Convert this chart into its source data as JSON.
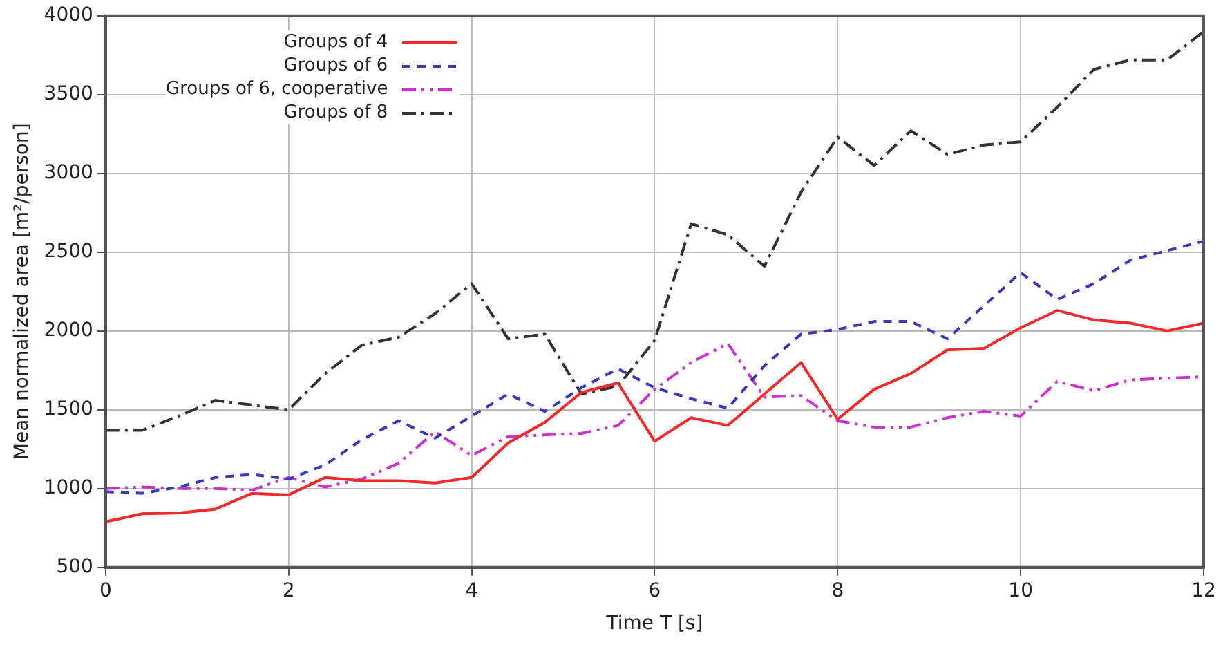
{
  "chart_data": {
    "type": "line",
    "xlabel": "Time T [s]",
    "ylabel": "Mean normalized area [m²/person]",
    "x": [
      0,
      0.4,
      0.8,
      1.2,
      1.6,
      2.0,
      2.4,
      2.8,
      3.2,
      3.6,
      4.0,
      4.4,
      4.8,
      5.2,
      5.6,
      6.0,
      6.4,
      6.8,
      7.2,
      7.6,
      8.0,
      8.4,
      8.8,
      9.2,
      9.6,
      10.0,
      10.4,
      10.8,
      11.2,
      11.6,
      12.0
    ],
    "series": [
      {
        "name": "Groups of 4",
        "color": "#ee2a2a",
        "line_style": "solid",
        "values": [
          790,
          840,
          845,
          870,
          970,
          960,
          1070,
          1050,
          1050,
          1035,
          1070,
          1290,
          1420,
          1610,
          1670,
          1300,
          1450,
          1400,
          1600,
          1800,
          1440,
          1630,
          1730,
          1880,
          1890,
          2020,
          2130,
          2070,
          2050,
          2000,
          2050
        ]
      },
      {
        "name": "Groups of 6",
        "color": "#3a3ab8",
        "line_style": "dashed",
        "values": [
          980,
          970,
          1010,
          1070,
          1090,
          1060,
          1150,
          1310,
          1430,
          1320,
          1460,
          1600,
          1490,
          1640,
          1760,
          1640,
          1570,
          1510,
          1780,
          1980,
          2010,
          2060,
          2060,
          1950,
          2160,
          2370,
          2200,
          2300,
          2450,
          2510,
          2570
        ]
      },
      {
        "name": "Groups of 6, cooperative",
        "color": "#cc33cc",
        "line_style": "dashed",
        "values": [
          1000,
          1010,
          1000,
          1000,
          990,
          1070,
          1010,
          1060,
          1160,
          1360,
          1210,
          1330,
          1340,
          1350,
          1400,
          1630,
          1800,
          1920,
          1580,
          1590,
          1430,
          1390,
          1390,
          1450,
          1490,
          1460,
          1680,
          1620,
          1690,
          1700,
          1710
        ]
      },
      {
        "name": "Groups of 8",
        "color": "#333333",
        "line_style": "dashed",
        "values": [
          1370,
          1370,
          1460,
          1560,
          1530,
          1500,
          1730,
          1910,
          1960,
          2110,
          2300,
          1950,
          1980,
          1600,
          1650,
          1940,
          2680,
          2610,
          2410,
          2880,
          3230,
          3050,
          3270,
          3120,
          3180,
          3200,
          3420,
          3660,
          3720,
          3720,
          3900
        ]
      }
    ],
    "xlim": [
      0,
      12
    ],
    "xticks": [
      0,
      2,
      4,
      6,
      8,
      10,
      12
    ],
    "ylim": [
      500,
      4000
    ],
    "yticks": [
      500,
      1000,
      1500,
      2000,
      2500,
      3000,
      3500,
      4000
    ],
    "grid": true,
    "legend": "top left",
    "marker": "none"
  }
}
